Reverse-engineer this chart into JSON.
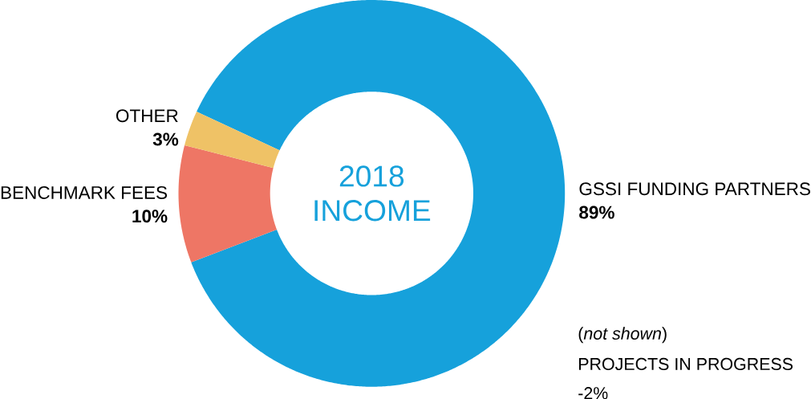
{
  "chart_data": {
    "type": "donut",
    "title": "2018 INCOME",
    "categories": [
      "GSSI FUNDING PARTNERS",
      "BENCHMARK FEES",
      "OTHER"
    ],
    "values": [
      89,
      10,
      3
    ],
    "colors": [
      "#16a1db",
      "#ee7665",
      "#efc266"
    ],
    "value_labels": [
      "89%",
      "10%",
      "3%"
    ],
    "annotations": [
      "(*not shown*)",
      "PROJECTS IN PROGRESS",
      "-2%"
    ]
  }
}
